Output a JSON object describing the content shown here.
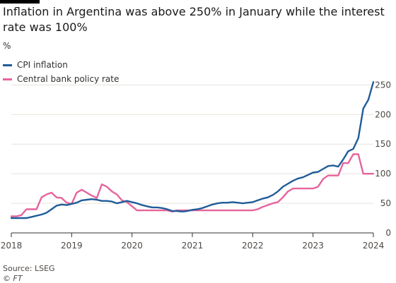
{
  "title": "Inflation in Argentina was above 250% in January while the interest rate was 100%",
  "source": "Source: LSEG",
  "credit": "© FT",
  "colors": {
    "cpi": "#1f5c99",
    "rate": "#e6649b",
    "grid": "#e8e2dc",
    "axis": "#33302e"
  },
  "chart_data": {
    "type": "line",
    "ylabel": "%",
    "ylim": [
      0,
      260
    ],
    "xlim": [
      2018,
      2024
    ],
    "y_ticks": [
      0,
      50,
      100,
      150,
      200,
      250
    ],
    "x_ticks": [
      2018,
      2019,
      2020,
      2021,
      2022,
      2023,
      2024
    ],
    "grid": true,
    "legend_position": "top-left",
    "series": [
      {
        "name": "CPI inflation",
        "color": "#1f5c99",
        "x": [
          2018.0,
          2018.083,
          2018.167,
          2018.25,
          2018.333,
          2018.417,
          2018.5,
          2018.583,
          2018.667,
          2018.75,
          2018.833,
          2018.917,
          2019.0,
          2019.083,
          2019.167,
          2019.25,
          2019.333,
          2019.417,
          2019.5,
          2019.583,
          2019.667,
          2019.75,
          2019.833,
          2019.917,
          2020.0,
          2020.083,
          2020.167,
          2020.25,
          2020.333,
          2020.417,
          2020.5,
          2020.583,
          2020.667,
          2020.75,
          2020.833,
          2020.917,
          2021.0,
          2021.083,
          2021.167,
          2021.25,
          2021.333,
          2021.417,
          2021.5,
          2021.583,
          2021.667,
          2021.75,
          2021.833,
          2021.917,
          2022.0,
          2022.083,
          2022.167,
          2022.25,
          2022.333,
          2022.417,
          2022.5,
          2022.583,
          2022.667,
          2022.75,
          2022.833,
          2022.917,
          2023.0,
          2023.083,
          2023.167,
          2023.25,
          2023.333,
          2023.417,
          2023.5,
          2023.583,
          2023.667,
          2023.75,
          2023.833,
          2023.917,
          2024.0
        ],
        "y": [
          25,
          25,
          25,
          25,
          27,
          29,
          31,
          34,
          40,
          46,
          48,
          47,
          49,
          51,
          55,
          56,
          57,
          56,
          54,
          54,
          53,
          50,
          52,
          54,
          52,
          50,
          47,
          45,
          43,
          43,
          42,
          40,
          37,
          37,
          36,
          37,
          39,
          40,
          42,
          45,
          48,
          50,
          51,
          51,
          52,
          51,
          50,
          51,
          52,
          55,
          58,
          60,
          64,
          70,
          78,
          83,
          88,
          92,
          94,
          98,
          102,
          103,
          108,
          113,
          114,
          112,
          124,
          138,
          142,
          160,
          210,
          225,
          255
        ]
      },
      {
        "name": "Central bank policy rate",
        "color": "#e6649b",
        "x": [
          2018.0,
          2018.083,
          2018.167,
          2018.25,
          2018.333,
          2018.417,
          2018.5,
          2018.583,
          2018.667,
          2018.75,
          2018.833,
          2018.917,
          2019.0,
          2019.083,
          2019.167,
          2019.25,
          2019.333,
          2019.417,
          2019.5,
          2019.583,
          2019.667,
          2019.75,
          2019.833,
          2019.917,
          2020.0,
          2020.083,
          2020.167,
          2020.25,
          2020.333,
          2020.417,
          2020.5,
          2020.583,
          2020.667,
          2020.75,
          2020.833,
          2020.917,
          2021.0,
          2021.083,
          2021.167,
          2021.25,
          2021.333,
          2021.417,
          2021.5,
          2021.583,
          2021.667,
          2021.75,
          2021.833,
          2021.917,
          2022.0,
          2022.083,
          2022.167,
          2022.25,
          2022.333,
          2022.417,
          2022.5,
          2022.583,
          2022.667,
          2022.75,
          2022.833,
          2022.917,
          2023.0,
          2023.083,
          2023.167,
          2023.25,
          2023.333,
          2023.417,
          2023.5,
          2023.583,
          2023.667,
          2023.75,
          2023.833,
          2023.917,
          2024.0
        ],
        "y": [
          28,
          28,
          30,
          40,
          40,
          40,
          60,
          65,
          68,
          60,
          59,
          51,
          49,
          68,
          73,
          68,
          63,
          59,
          82,
          78,
          70,
          65,
          55,
          52,
          45,
          38,
          38,
          38,
          38,
          38,
          38,
          38,
          36,
          38,
          38,
          38,
          38,
          38,
          38,
          38,
          38,
          38,
          38,
          38,
          38,
          38,
          38,
          38,
          38,
          40,
          44,
          47,
          50,
          52,
          60,
          70,
          75,
          75,
          75,
          75,
          75,
          78,
          91,
          97,
          97,
          97,
          118,
          118,
          133,
          133,
          100,
          100,
          100
        ]
      }
    ]
  }
}
